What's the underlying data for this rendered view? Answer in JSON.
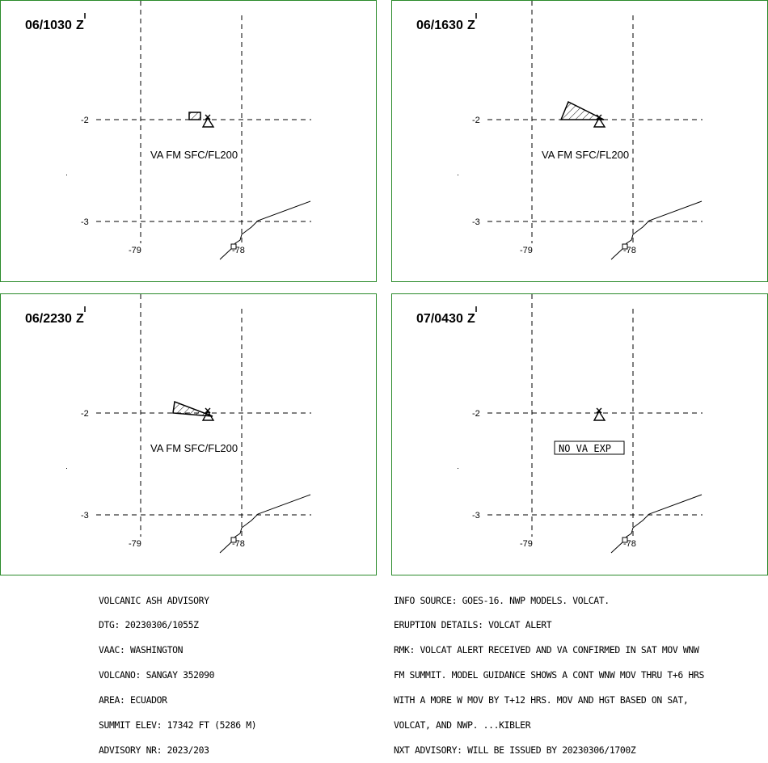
{
  "panels": [
    {
      "time": "06/1030",
      "z": "Z",
      "label": "VA FM SFC/FL200",
      "shape": "box"
    },
    {
      "time": "06/1630",
      "z": "Z",
      "label": "VA FM SFC/FL200",
      "shape": "wedge-large"
    },
    {
      "time": "06/2230",
      "z": "Z",
      "label": "VA FM SFC/FL200",
      "shape": "wedge"
    },
    {
      "time": "07/0430",
      "z": "Z",
      "label": "NO VA EXP",
      "shape": "none"
    }
  ],
  "axis_labels": {
    "lat": "-2",
    "lat2": "-3",
    "lon1": "-79",
    "lon2": "-78"
  },
  "advisory_left": [
    "VOLCANIC ASH ADVISORY",
    "DTG: 20230306/1055Z",
    "VAAC: WASHINGTON",
    "VOLCANO: SANGAY 352090",
    "AREA: ECUADOR",
    "SUMMIT ELEV: 17342 FT (5286 M)",
    "ADVISORY NR: 2023/203"
  ],
  "advisory_right": [
    "INFO SOURCE: GOES-16. NWP MODELS. VOLCAT.",
    "ERUPTION DETAILS: VOLCAT ALERT",
    "RMK: VOLCAT ALERT RECEIVED AND VA CONFIRMED IN SAT MOV WNW",
    "FM SUMMIT. MODEL GUIDANCE SHOWS A CONT WNW MOV THRU T+6 HRS",
    "WITH A MORE W MOV BY T+12 HRS. MOV AND HGT BASED ON SAT,",
    "VOLCAT, AND NWP. ...KIBLER",
    "NXT ADVISORY: WILL BE ISSUED BY 20230306/1700Z"
  ],
  "colors": {
    "frame": "#2a8a2a",
    "ink": "#000000"
  }
}
